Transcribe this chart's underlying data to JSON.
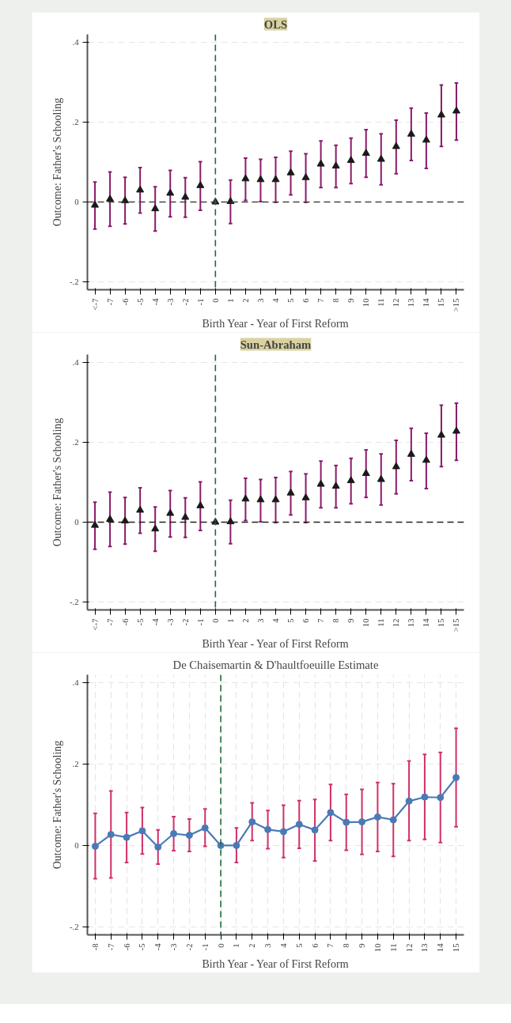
{
  "chart_data": [
    {
      "type": "scatter",
      "title": "OLS",
      "xlabel": "Birth Year - Year of First Reform",
      "ylabel": "Outcome: Father's Schooling",
      "categories": [
        "<-7",
        "-7",
        "-6",
        "-5",
        "-4",
        "-3",
        "-2",
        "-1",
        "0",
        "1",
        "2",
        "3",
        "4",
        "5",
        "6",
        "7",
        "8",
        "9",
        "10",
        "11",
        "12",
        "13",
        "14",
        "15",
        ">15"
      ],
      "series": [
        {
          "color": "#1a1a1a",
          "values": [
            -0.008,
            0.007,
            0.003,
            0.03,
            -0.017,
            0.022,
            0.012,
            0.041,
            0,
            0.001,
            0.058,
            0.056,
            0.056,
            0.073,
            0.061,
            0.095,
            0.09,
            0.104,
            0.122,
            0.107,
            0.139,
            0.17,
            0.155,
            0.218,
            0.228
          ],
          "errors": [
            [
              -0.068,
              0.05
            ],
            [
              -0.061,
              0.075
            ],
            [
              -0.055,
              0.062
            ],
            [
              -0.028,
              0.086
            ],
            [
              -0.073,
              0.038
            ],
            [
              -0.037,
              0.079
            ],
            [
              -0.038,
              0.061
            ],
            [
              -0.021,
              0.101
            ],
            null,
            [
              -0.054,
              0.055
            ],
            [
              0.004,
              0.11
            ],
            [
              0.001,
              0.107
            ],
            [
              -0.001,
              0.112
            ],
            [
              0.018,
              0.127
            ],
            [
              -0.001,
              0.121
            ],
            [
              0.036,
              0.153
            ],
            [
              0.036,
              0.142
            ],
            [
              0.046,
              0.16
            ],
            [
              0.062,
              0.181
            ],
            [
              0.043,
              0.171
            ],
            [
              0.071,
              0.205
            ],
            [
              0.104,
              0.235
            ],
            [
              0.084,
              0.223
            ],
            [
              0.139,
              0.293
            ],
            [
              0.155,
              0.298
            ]
          ]
        }
      ],
      "marker": "triangle",
      "ylim": [
        -0.22,
        0.42
      ],
      "yticks": [
        {
          "value": -0.2,
          "label": "-.2"
        },
        0,
        {
          "value": 0.2,
          "label": ".2"
        },
        {
          "value": 0.4,
          "label": ".4"
        }
      ],
      "grid": "y",
      "ref_lines": [
        {
          "axis": "x",
          "value": "0",
          "color": "#1e6b3a",
          "line_style": "dashed"
        },
        {
          "axis": "y",
          "value": 0,
          "color": "#444444",
          "line_style": "dashed"
        }
      ]
    },
    {
      "type": "scatter",
      "title": "Sun-Abraham",
      "xlabel": "Birth Year - Year of First Reform",
      "ylabel": "Outcome: Father's Schooling",
      "categories": [
        "<-7",
        "-7",
        "-6",
        "-5",
        "-4",
        "-3",
        "-2",
        "-1",
        "0",
        "1",
        "2",
        "3",
        "4",
        "5",
        "6",
        "7",
        "8",
        "9",
        "10",
        "11",
        "12",
        "13",
        "14",
        "15",
        ">15"
      ],
      "series": [
        {
          "color": "#1a1a1a",
          "values": [
            -0.008,
            0.007,
            0.003,
            0.03,
            -0.017,
            0.022,
            0.012,
            0.041,
            0,
            0.001,
            0.058,
            0.056,
            0.056,
            0.073,
            0.061,
            0.095,
            0.09,
            0.104,
            0.122,
            0.107,
            0.139,
            0.17,
            0.155,
            0.218,
            0.228
          ],
          "errors": [
            [
              -0.068,
              0.05
            ],
            [
              -0.061,
              0.075
            ],
            [
              -0.055,
              0.062
            ],
            [
              -0.028,
              0.086
            ],
            [
              -0.073,
              0.038
            ],
            [
              -0.037,
              0.079
            ],
            [
              -0.038,
              0.061
            ],
            [
              -0.021,
              0.101
            ],
            null,
            [
              -0.054,
              0.055
            ],
            [
              0.004,
              0.11
            ],
            [
              0.001,
              0.107
            ],
            [
              -0.001,
              0.112
            ],
            [
              0.018,
              0.127
            ],
            [
              -0.001,
              0.121
            ],
            [
              0.036,
              0.153
            ],
            [
              0.036,
              0.142
            ],
            [
              0.046,
              0.16
            ],
            [
              0.062,
              0.181
            ],
            [
              0.043,
              0.171
            ],
            [
              0.071,
              0.205
            ],
            [
              0.104,
              0.235
            ],
            [
              0.084,
              0.223
            ],
            [
              0.139,
              0.293
            ],
            [
              0.155,
              0.298
            ]
          ]
        }
      ],
      "marker": "triangle",
      "ylim": [
        -0.22,
        0.42
      ],
      "yticks": [
        {
          "value": -0.2,
          "label": "-.2"
        },
        0,
        {
          "value": 0.2,
          "label": ".2"
        },
        {
          "value": 0.4,
          "label": ".4"
        }
      ],
      "grid": "y",
      "ref_lines": [
        {
          "axis": "x",
          "value": "0",
          "color": "#1e6b3a",
          "line_style": "dashed"
        },
        {
          "axis": "y",
          "value": 0,
          "color": "#222222",
          "line_style": "dashed"
        }
      ]
    },
    {
      "type": "line",
      "title": "De Chaisemartin & D'haultfoeuille Estimate",
      "xlabel": "Birth Year - Year of First Reform",
      "ylabel": "Outcome: Father's Schooling",
      "categories": [
        "-8",
        "-7",
        "-6",
        "-5",
        "-4",
        "-3",
        "-2",
        "-1",
        "0",
        "1",
        "2",
        "3",
        "4",
        "5",
        "6",
        "7",
        "8",
        "9",
        "10",
        "11",
        "12",
        "13",
        "14",
        "15"
      ],
      "series": [
        {
          "color": "#4a7ab5",
          "values": [
            -0.002,
            0.027,
            0.02,
            0.036,
            -0.004,
            0.029,
            0.025,
            0.043,
            0,
            0,
            0.058,
            0.039,
            0.034,
            0.052,
            0.038,
            0.081,
            0.057,
            0.058,
            0.07,
            0.063,
            0.109,
            0.119,
            0.118,
            0.167
          ],
          "errors": [
            [
              -0.082,
              0.079
            ],
            [
              -0.08,
              0.134
            ],
            [
              -0.042,
              0.081
            ],
            [
              -0.021,
              0.093
            ],
            [
              -0.046,
              0.038
            ],
            [
              -0.013,
              0.071
            ],
            [
              -0.015,
              0.065
            ],
            [
              -0.002,
              0.09
            ],
            null,
            [
              -0.042,
              0.043
            ],
            [
              0.012,
              0.105
            ],
            [
              -0.008,
              0.086
            ],
            [
              -0.03,
              0.099
            ],
            [
              -0.007,
              0.11
            ],
            [
              -0.038,
              0.113
            ],
            [
              0.012,
              0.15
            ],
            [
              -0.012,
              0.126
            ],
            [
              -0.022,
              0.138
            ],
            [
              -0.015,
              0.155
            ],
            [
              -0.027,
              0.152
            ],
            [
              0.012,
              0.208
            ],
            [
              0.015,
              0.224
            ],
            [
              0.007,
              0.229
            ],
            [
              0.046,
              0.288
            ]
          ]
        }
      ],
      "marker": "circle",
      "line_style": "solid",
      "ylim": [
        -0.22,
        0.42
      ],
      "yticks": [
        {
          "value": -0.2,
          "label": "-.2"
        },
        0,
        {
          "value": 0.2,
          "label": ".2"
        },
        {
          "value": 0.4,
          "label": ".4"
        }
      ],
      "grid": true,
      "ref_lines": [
        {
          "axis": "x",
          "value": "0",
          "color": "#1e6b3a",
          "line_style": "dashed"
        }
      ]
    }
  ]
}
